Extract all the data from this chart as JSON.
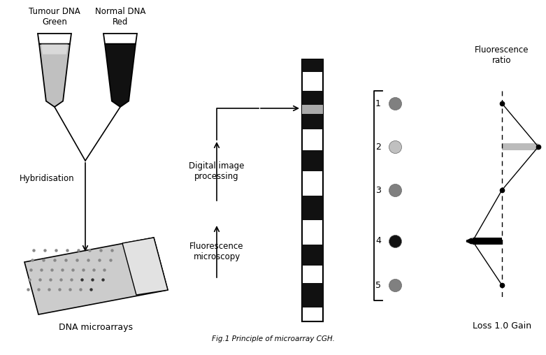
{
  "title": "Fig.1 Principle of microarray CGH.",
  "tube1_label": "Tumour DNA\nGreen",
  "tube2_label": "Normal DNA\nRed",
  "hybridisation_label": "Hybridisation",
  "microarray_label": "DNA microarrays",
  "digital_label": "Digital image\nprocessing",
  "fluorescence_label": "Fluorescence\nmicroscopy",
  "fluoro_ratio_label": "Fluorescence\nratio",
  "loss_gain_label": "Loss 1.0 Gain",
  "probe_labels": [
    "1",
    "2",
    "3",
    "4",
    "5"
  ],
  "probe_colors": [
    "#808080",
    "#c0c0c0",
    "#808080",
    "#111111",
    "#808080"
  ],
  "background_color": "#ffffff",
  "text_color": "#000000",
  "tube1_fill": "#c0c0c0",
  "tube2_fill": "#111111",
  "chr_bands": [
    [
      0,
      18,
      "black"
    ],
    [
      18,
      45,
      "white"
    ],
    [
      45,
      65,
      "black"
    ],
    [
      65,
      78,
      "gray"
    ],
    [
      78,
      100,
      "black"
    ],
    [
      100,
      130,
      "white"
    ],
    [
      130,
      160,
      "black"
    ],
    [
      160,
      195,
      "white"
    ],
    [
      195,
      230,
      "black"
    ],
    [
      230,
      265,
      "white"
    ],
    [
      265,
      295,
      "black"
    ],
    [
      295,
      320,
      "white"
    ],
    [
      320,
      355,
      "black"
    ],
    [
      355,
      375,
      "white"
    ]
  ]
}
